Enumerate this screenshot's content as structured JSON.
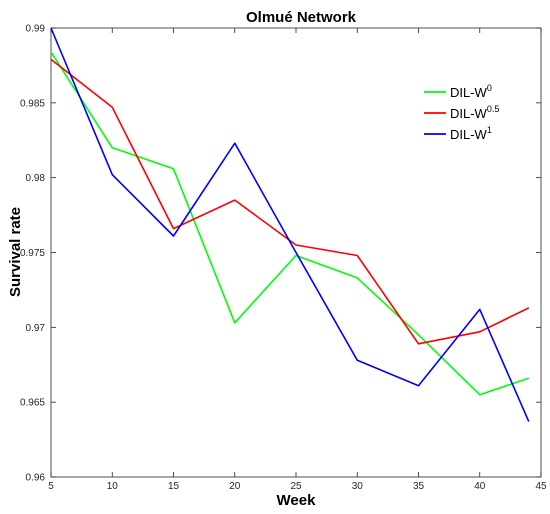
{
  "chart_data": {
    "type": "line",
    "title": "Olmué Network",
    "xlabel": "Week",
    "ylabel": "Survival rate",
    "xlim": [
      5,
      45
    ],
    "ylim": [
      0.96,
      0.99
    ],
    "x_ticks": [
      "5",
      "10",
      "15",
      "20",
      "25",
      "30",
      "35",
      "40",
      "45"
    ],
    "y_ticks": [
      "0.96",
      "0.965",
      "0.97",
      "0.975",
      "0.98",
      "0.985",
      "0.99"
    ],
    "grid": false,
    "legend_position": "top-right",
    "series": [
      {
        "name": "DIL-W",
        "sup": "0",
        "color": "#00ff00",
        "x": [
          5,
          10,
          15,
          20,
          25,
          30,
          35,
          40,
          44
        ],
        "values": [
          0.9884,
          0.982,
          0.9806,
          0.9703,
          0.9748,
          0.9733,
          0.9695,
          0.9655,
          0.9666
        ]
      },
      {
        "name": "DIL-W",
        "sup": "0.5",
        "color": "#ff0000",
        "x": [
          5,
          10,
          15,
          20,
          25,
          30,
          35,
          40,
          44
        ],
        "values": [
          0.9879,
          0.9847,
          0.9766,
          0.9785,
          0.9755,
          0.9748,
          0.9689,
          0.9697,
          0.9713
        ]
      },
      {
        "name": "DIL-W",
        "sup": "1",
        "color": "#0000ff",
        "x": [
          5,
          10,
          15,
          20,
          25,
          30,
          35,
          40,
          44
        ],
        "values": [
          0.99,
          0.9802,
          0.9761,
          0.9823,
          0.975,
          0.9678,
          0.9661,
          0.9712,
          0.9637
        ]
      }
    ]
  }
}
